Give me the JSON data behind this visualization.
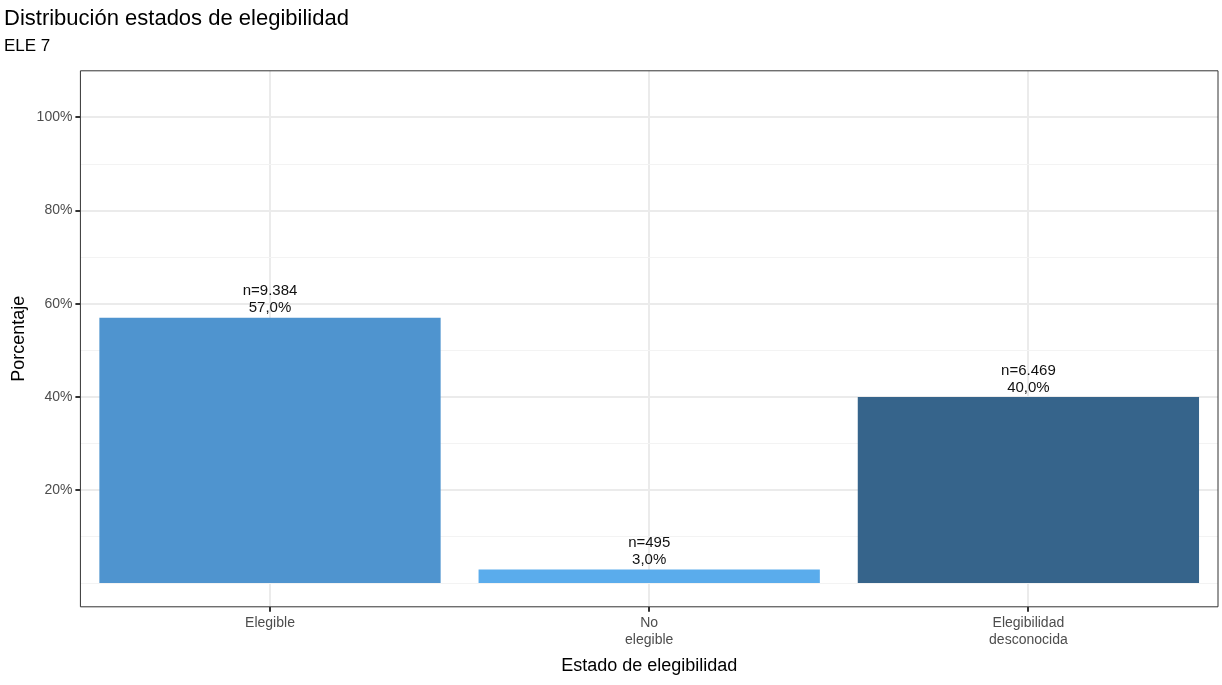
{
  "chart_data": {
    "type": "bar",
    "title": "Distribución estados de elegibilidad",
    "subtitle": "ELE 7",
    "xlabel": "Estado de elegibilidad",
    "ylabel": "Porcentaje",
    "categories": [
      "Elegible",
      "No\nelegible",
      "Elegibilidad\ndesconocida"
    ],
    "values": [
      57,
      3,
      40
    ],
    "colors": [
      "#4f94cf",
      "#5aacec",
      "#36648b"
    ],
    "value_labels": [
      "n=9.384\n57,0%",
      "n=495\n3,0%",
      "n=6.469\n40,0%"
    ],
    "ylim": [
      -5,
      110
    ],
    "yticks": [
      {
        "value": 0,
        "label": null
      },
      {
        "value": 10,
        "label": null
      },
      {
        "value": 20,
        "label": "20%"
      },
      {
        "value": 30,
        "label": null
      },
      {
        "value": 40,
        "label": "40%"
      },
      {
        "value": 50,
        "label": null
      },
      {
        "value": 60,
        "label": "60%"
      },
      {
        "value": 70,
        "label": null
      },
      {
        "value": 80,
        "label": "80%"
      },
      {
        "value": 90,
        "label": null
      },
      {
        "value": 100,
        "label": "100%"
      }
    ],
    "grid": true,
    "legend": false
  }
}
